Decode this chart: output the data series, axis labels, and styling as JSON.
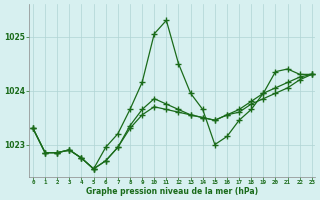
{
  "xlabel": "Graphe pression niveau de la mer (hPa)",
  "hours": [
    0,
    1,
    2,
    3,
    4,
    5,
    6,
    7,
    8,
    9,
    10,
    11,
    12,
    13,
    14,
    15,
    16,
    17,
    18,
    19,
    20,
    21,
    22,
    23
  ],
  "series1": [
    1023.3,
    1022.85,
    1022.85,
    1022.9,
    1022.75,
    1022.55,
    1022.95,
    1023.2,
    1023.65,
    1024.15,
    1025.05,
    1025.3,
    1024.5,
    1023.95,
    1023.65,
    1023.0,
    1023.15,
    1023.45,
    1023.65,
    1023.95,
    1024.35,
    1024.4,
    1024.3,
    1024.3
  ],
  "series2": [
    1023.3,
    1022.85,
    1022.85,
    1022.9,
    1022.75,
    1022.55,
    1022.7,
    1022.95,
    1023.35,
    1023.65,
    1023.85,
    1023.75,
    1023.65,
    1023.55,
    1023.5,
    1023.45,
    1023.55,
    1023.65,
    1023.8,
    1023.95,
    1024.05,
    1024.15,
    1024.25,
    1024.3
  ],
  "series3": [
    1023.3,
    1022.85,
    1022.85,
    1022.9,
    1022.75,
    1022.55,
    1022.7,
    1022.95,
    1023.3,
    1023.55,
    1023.7,
    1023.65,
    1023.6,
    1023.55,
    1023.5,
    1023.45,
    1023.55,
    1023.6,
    1023.75,
    1023.85,
    1023.95,
    1024.05,
    1024.2,
    1024.3
  ],
  "line_color": "#1a6b1a",
  "bg_color": "#d7f0f0",
  "grid_color": "#b0d4d4",
  "text_color": "#1a6b1a",
  "ylim": [
    1022.4,
    1025.6
  ],
  "yticks": [
    1023,
    1024,
    1025
  ],
  "ytick_labels": [
    "1023",
    "1024",
    "1025"
  ],
  "marker": "+",
  "marker_size": 4,
  "linewidth": 0.9
}
